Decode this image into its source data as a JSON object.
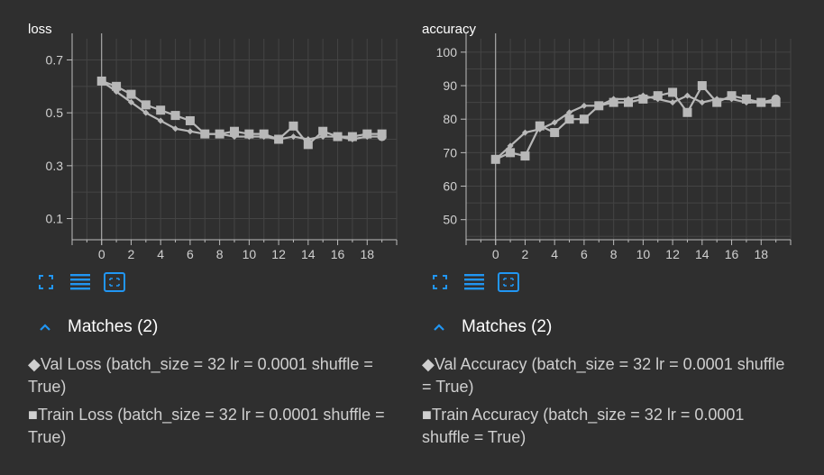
{
  "colors": {
    "background": "#2f2f2f",
    "grid": "#444444",
    "axis": "#bdbdbd",
    "series": "#b8b8b8",
    "accent": "#2196f3"
  },
  "charts": [
    {
      "title": "loss",
      "matches_label": "Matches (2)",
      "icons": [
        "fit-domain-icon",
        "toggle-log-icon",
        "expand-chart-icon"
      ],
      "entries": [
        {
          "marker": "◆",
          "label": "Val Loss (batch_size = 32 lr = 0.0001 shuffle = True)"
        },
        {
          "marker": "■",
          "label": "Train Loss (batch_size = 32 lr = 0.0001 shuffle = True)"
        }
      ]
    },
    {
      "title": "accuracy",
      "matches_label": "Matches (2)",
      "icons": [
        "fit-domain-icon",
        "toggle-log-icon",
        "expand-chart-icon"
      ],
      "entries": [
        {
          "marker": "◆",
          "label": "Val Accuracy (batch_size = 32 lr = 0.0001 shuffle = True)"
        },
        {
          "marker": "■",
          "label": "Train Accuracy (batch_size = 32 lr = 0.0001 shuffle = True)"
        }
      ]
    }
  ],
  "chart_data": [
    {
      "type": "line",
      "title": "loss",
      "xlabel": "",
      "ylabel": "",
      "xlim": [
        -2,
        20
      ],
      "ylim": [
        0.02,
        0.78
      ],
      "xticks": [
        0,
        2,
        4,
        6,
        8,
        10,
        12,
        14,
        16,
        18
      ],
      "yticks": [
        0.1,
        0.3,
        0.5,
        0.7
      ],
      "ytick_labels": [
        "0.1",
        "0.3",
        "0.5",
        "0.7"
      ],
      "grid": true,
      "series": [
        {
          "name": "Val Loss (batch_size = 32 lr = 0.0001 shuffle = True)",
          "marker": "diamond",
          "x": [
            0,
            1,
            2,
            3,
            4,
            5,
            6,
            7,
            8,
            9,
            10,
            11,
            12,
            13,
            14,
            15,
            16,
            17,
            18,
            19
          ],
          "values": [
            0.62,
            0.58,
            0.54,
            0.5,
            0.47,
            0.44,
            0.43,
            0.42,
            0.42,
            0.41,
            0.41,
            0.41,
            0.4,
            0.41,
            0.4,
            0.41,
            0.41,
            0.4,
            0.41,
            0.41
          ]
        },
        {
          "name": "Train Loss (batch_size = 32 lr = 0.0001 shuffle = True)",
          "marker": "square",
          "x": [
            0,
            1,
            2,
            3,
            4,
            5,
            6,
            7,
            8,
            9,
            10,
            11,
            12,
            13,
            14,
            15,
            16,
            17,
            18,
            19
          ],
          "values": [
            0.62,
            0.6,
            0.57,
            0.53,
            0.51,
            0.49,
            0.47,
            0.42,
            0.42,
            0.43,
            0.42,
            0.42,
            0.4,
            0.45,
            0.38,
            0.43,
            0.41,
            0.41,
            0.42,
            0.42
          ]
        }
      ]
    },
    {
      "type": "line",
      "title": "accuracy",
      "xlabel": "",
      "ylabel": "",
      "xlim": [
        -2,
        20
      ],
      "ylim": [
        44,
        104
      ],
      "xticks": [
        0,
        2,
        4,
        6,
        8,
        10,
        12,
        14,
        16,
        18
      ],
      "yticks": [
        50,
        60,
        70,
        80,
        90,
        100
      ],
      "ytick_labels": [
        "50",
        "60",
        "70",
        "80",
        "90",
        "100"
      ],
      "grid": true,
      "series": [
        {
          "name": "Val Accuracy (batch_size = 32 lr = 0.0001 shuffle = True)",
          "marker": "diamond",
          "x": [
            0,
            1,
            2,
            3,
            4,
            5,
            6,
            7,
            8,
            9,
            10,
            11,
            12,
            13,
            14,
            15,
            16,
            17,
            18,
            19
          ],
          "values": [
            68,
            72,
            76,
            77,
            79,
            82,
            84,
            84,
            86,
            86,
            87,
            86,
            85,
            87,
            85,
            86,
            86,
            85,
            85,
            86
          ]
        },
        {
          "name": "Train Accuracy (batch_size = 32 lr = 0.0001 shuffle = True)",
          "marker": "square",
          "x": [
            0,
            1,
            2,
            3,
            4,
            5,
            6,
            7,
            8,
            9,
            10,
            11,
            12,
            13,
            14,
            15,
            16,
            17,
            18,
            19
          ],
          "values": [
            68,
            70,
            69,
            78,
            76,
            80,
            80,
            84,
            85,
            85,
            86,
            87,
            88,
            82,
            90,
            85,
            87,
            86,
            85,
            85
          ]
        }
      ]
    }
  ]
}
